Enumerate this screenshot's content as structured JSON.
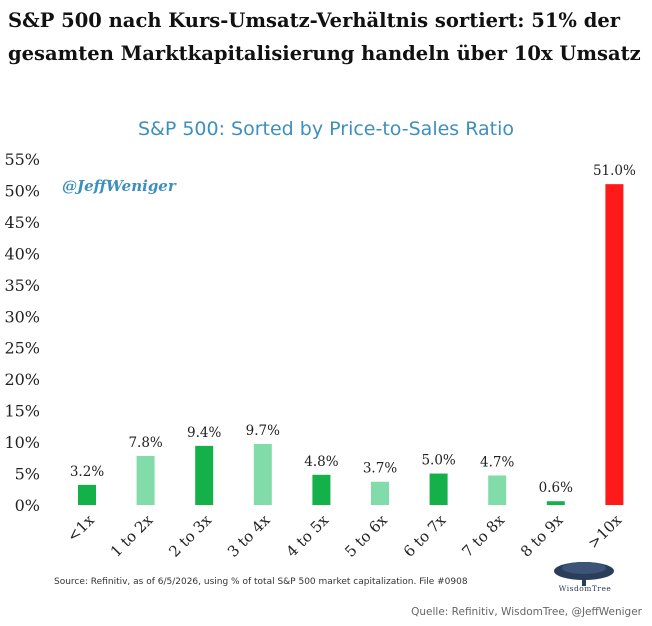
{
  "headline": "S&P 500 nach Kurs-Umsatz-Verhältnis sortiert: 51% der gesamten Marktkapitalisierung handeln über 10x Umsatz",
  "credit": "Quelle: Refinitiv, WisdomTree, @JeffWeniger",
  "colors": {
    "dark_green": "#14b04a",
    "light_green": "#82dca9",
    "red": "#ff1a1a",
    "title_blue": "#3d8fbf"
  },
  "chart_data": {
    "type": "bar",
    "title": "S&P 500: Sorted by Price-to-Sales Ratio",
    "annotation": "@JeffWeniger",
    "categories": [
      "<1x",
      "1 to 2x",
      "2 to 3x",
      "3 to 4x",
      "4 to 5x",
      "5 to 6x",
      "6 to 7x",
      "7 to 8x",
      "8 to 9x",
      ">10x"
    ],
    "values": [
      3.2,
      7.8,
      9.4,
      9.7,
      4.8,
      3.7,
      5.0,
      4.7,
      0.6,
      51.0
    ],
    "data_labels": [
      "3.2%",
      "7.8%",
      "9.4%",
      "9.7%",
      "4.8%",
      "3.7%",
      "5.0%",
      "4.7%",
      "0.6%",
      "51.0%"
    ],
    "bar_colors": [
      "dark_green",
      "light_green",
      "dark_green",
      "light_green",
      "dark_green",
      "light_green",
      "dark_green",
      "light_green",
      "dark_green",
      "red"
    ],
    "ylim": [
      0,
      55
    ],
    "y_ticks": [
      0,
      5,
      10,
      15,
      20,
      25,
      30,
      35,
      40,
      45,
      50,
      55
    ],
    "y_tick_labels": [
      "0%",
      "5%",
      "10%",
      "15%",
      "20%",
      "25%",
      "30%",
      "35%",
      "40%",
      "45%",
      "50%",
      "55%"
    ],
    "source": "Source: Refinitiv, as of 6/5/2026, using % of total S&P 500 market capitalization.  File #0908",
    "grid": false,
    "legend": "none"
  },
  "logo": {
    "name": "wisdomtree-logo",
    "text": "WisdomTree"
  }
}
